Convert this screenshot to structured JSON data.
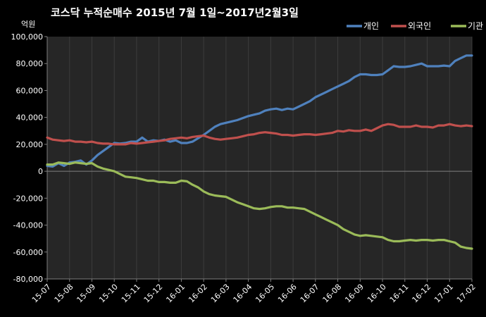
{
  "chart_data": {
    "type": "line",
    "title": "코스닥  누적순매수 2015년 7월 1일~2017년2월3일",
    "unit_label": "억원",
    "ylim": [
      -80000,
      100000
    ],
    "y_ticks": [
      -80000,
      -60000,
      -40000,
      -20000,
      0,
      20000,
      40000,
      60000,
      80000,
      100000
    ],
    "y_tick_labels": [
      "-80,000",
      "-60,000",
      "-40,000",
      "-20,000",
      "0",
      "20,000",
      "40,000",
      "60,000",
      "80,000",
      "100,000"
    ],
    "x_ticks": [
      "15-07",
      "15-08",
      "15-09",
      "15-10",
      "15-11",
      "15-12",
      "16-01",
      "16-02",
      "16-03",
      "16-04",
      "16-05",
      "16-06",
      "16-07",
      "16-08",
      "16-09",
      "16-10",
      "16-11",
      "16-12",
      "17-01",
      "17-02"
    ],
    "legend_position": "top-right",
    "grid": "vertical-only",
    "x": [
      0,
      0.25,
      0.5,
      0.75,
      1,
      1.25,
      1.5,
      1.75,
      2,
      2.25,
      2.5,
      2.75,
      3,
      3.25,
      3.5,
      3.75,
      4,
      4.25,
      4.5,
      4.75,
      5,
      5.25,
      5.5,
      5.75,
      6,
      6.25,
      6.5,
      6.75,
      7,
      7.25,
      7.5,
      7.75,
      8,
      8.25,
      8.5,
      8.75,
      9,
      9.25,
      9.5,
      9.75,
      10,
      10.25,
      10.5,
      10.75,
      11,
      11.25,
      11.5,
      11.75,
      12,
      12.25,
      12.5,
      12.75,
      13,
      13.25,
      13.5,
      13.75,
      14,
      14.25,
      14.5,
      14.75,
      15,
      15.25,
      15.5,
      15.75,
      16,
      16.25,
      16.5,
      16.75,
      17,
      17.25,
      17.5,
      17.75,
      18,
      18.25,
      18.5,
      18.75,
      19
    ],
    "series": [
      {
        "name": "개인",
        "color": "#4F81BD",
        "values": [
          4000,
          3500,
          6000,
          4000,
          6500,
          7000,
          8000,
          5000,
          8000,
          12000,
          15000,
          18000,
          21000,
          20500,
          21000,
          22000,
          22000,
          25000,
          22000,
          23000,
          22500,
          23500,
          22000,
          23000,
          21000,
          21000,
          22000,
          24500,
          27000,
          30000,
          33000,
          35000,
          36000,
          37000,
          38000,
          39500,
          41000,
          42000,
          43000,
          45000,
          46000,
          46500,
          45500,
          46500,
          46000,
          48000,
          50000,
          52000,
          55000,
          57000,
          59000,
          61000,
          63000,
          65000,
          67000,
          70000,
          72000,
          72000,
          71500,
          71500,
          72000,
          75000,
          78000,
          77500,
          77500,
          78000,
          79000,
          80000,
          78000,
          78000,
          78000,
          78500,
          78000,
          82000,
          84000,
          86000,
          86000
        ]
      },
      {
        "name": "외국인",
        "color": "#C0504D",
        "values": [
          25000,
          23500,
          23000,
          22500,
          23000,
          22000,
          22000,
          21500,
          22000,
          21000,
          20500,
          20500,
          20000,
          20000,
          20000,
          21000,
          20500,
          21000,
          21500,
          22000,
          22500,
          23000,
          24000,
          24500,
          25000,
          24500,
          25500,
          26000,
          26500,
          25000,
          24000,
          23500,
          24000,
          24500,
          25000,
          26000,
          27000,
          27500,
          28500,
          29000,
          28500,
          28000,
          27000,
          27000,
          26500,
          27000,
          27500,
          27500,
          27000,
          27500,
          28000,
          28500,
          30000,
          29500,
          30500,
          30000,
          30000,
          31000,
          30000,
          32000,
          34000,
          35000,
          34500,
          33000,
          33000,
          33000,
          34000,
          33000,
          33000,
          32500,
          34000,
          34000,
          35000,
          34000,
          33500,
          34000,
          33500
        ]
      },
      {
        "name": "기관",
        "color": "#9BBB59",
        "values": [
          5000,
          5000,
          6500,
          6000,
          5500,
          6500,
          6000,
          5500,
          6000,
          3500,
          2000,
          1000,
          0,
          -2000,
          -4000,
          -4500,
          -5000,
          -6000,
          -7000,
          -7000,
          -8000,
          -8000,
          -8500,
          -8500,
          -7000,
          -7500,
          -10000,
          -12000,
          -15000,
          -17000,
          -18000,
          -18500,
          -19000,
          -21000,
          -23000,
          -24500,
          -26000,
          -27500,
          -28000,
          -27500,
          -26500,
          -26000,
          -26000,
          -27000,
          -27000,
          -27500,
          -28000,
          -30000,
          -32000,
          -34000,
          -36000,
          -38000,
          -40000,
          -43000,
          -45000,
          -47000,
          -48000,
          -47500,
          -48000,
          -48500,
          -49000,
          -51000,
          -52000,
          -52000,
          -51500,
          -51000,
          -51500,
          -51000,
          -51000,
          -51500,
          -51000,
          -51000,
          -52000,
          -53000,
          -56000,
          -57000,
          -57500
        ]
      }
    ]
  }
}
